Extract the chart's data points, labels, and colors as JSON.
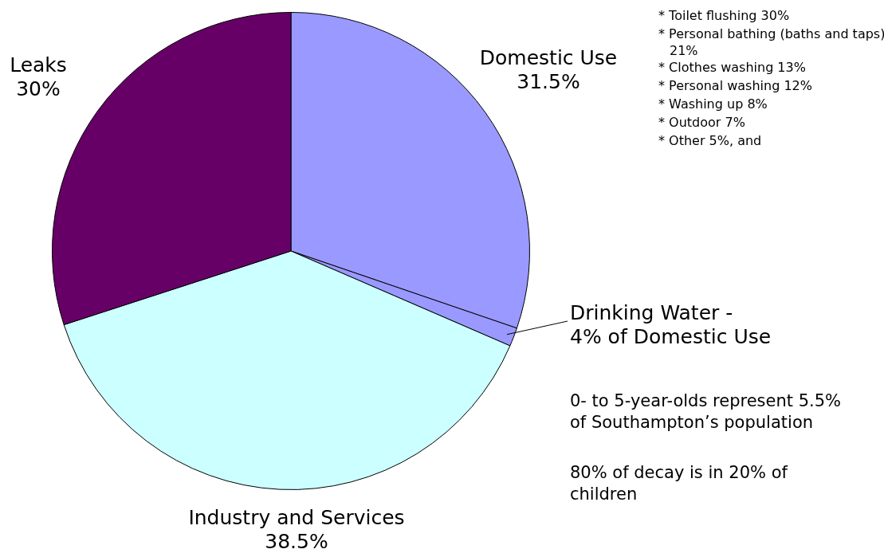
{
  "chart_data": {
    "type": "pie",
    "categories": [
      "Domestic Use",
      "Drinking Water -",
      "Industry and Services",
      "Leaks"
    ],
    "values": [
      30.24,
      1.26,
      38.5,
      30
    ],
    "colors": [
      "#9999ff",
      "#9999ff",
      "#ccffff",
      "#660066"
    ],
    "annotations": [
      "31.5%",
      "4% of Domestic Use",
      "38.5%",
      "30%",
      "* Toilet flushing  30%",
      "* Personal bathing (baths and taps)  21%",
      "* Clothes washing  13%",
      "* Personal washing  12%",
      "* Washing up  8%",
      "* Outdoor  7%",
      "* Other  5%, and",
      "0- to 5-year-olds represent 5.5% of Southampton’s population",
      "80% of decay is in 20% of children"
    ],
    "legend": false
  }
}
